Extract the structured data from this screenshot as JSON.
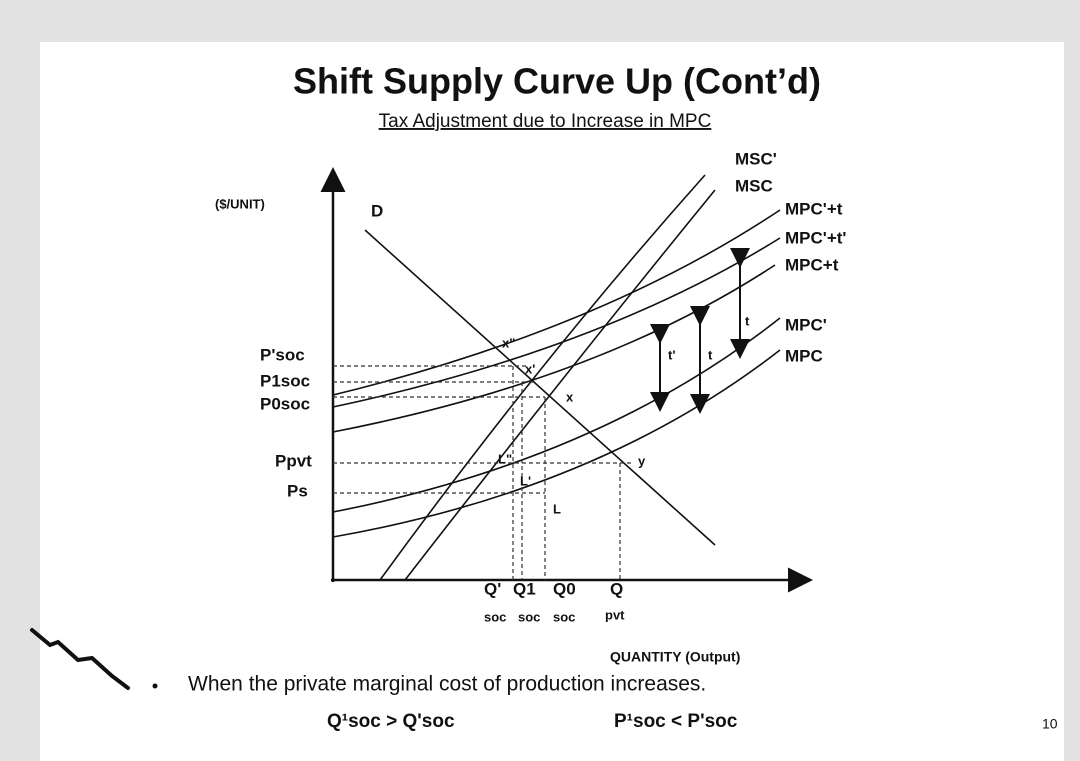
{
  "header": {
    "title": "Shift Supply Curve Up (Cont’d)",
    "subtitle": "Tax Adjustment due to Increase in MPC"
  },
  "diagram": {
    "y_axis_label": "($/UNIT)",
    "x_axis_label": "QUANTITY (Output)",
    "demand_label": "D",
    "curve_labels": [
      "MSC'",
      "MSC",
      "MPC'+t",
      "MPC'+t'",
      "MPC+t",
      "MPC'",
      "MPC"
    ],
    "price_labels": [
      "P'soc",
      "P1soc",
      "P0soc",
      "Ppvt",
      "Ps"
    ],
    "quantity_labels": [
      "Q'",
      "Q1",
      "Q0",
      "Q"
    ],
    "quantity_sub_labels": [
      "soc",
      "soc",
      "soc",
      "pvt"
    ],
    "point_labels": [
      "x\"",
      "x'",
      "x",
      "L\"",
      "L'",
      "L",
      "y",
      "t'",
      "t",
      "t"
    ]
  },
  "bullet": "When the private marginal cost of production increases.",
  "comparisons": [
    "Q¹soc > Q'soc",
    "P¹soc < P'soc"
  ],
  "page_number": "10"
}
